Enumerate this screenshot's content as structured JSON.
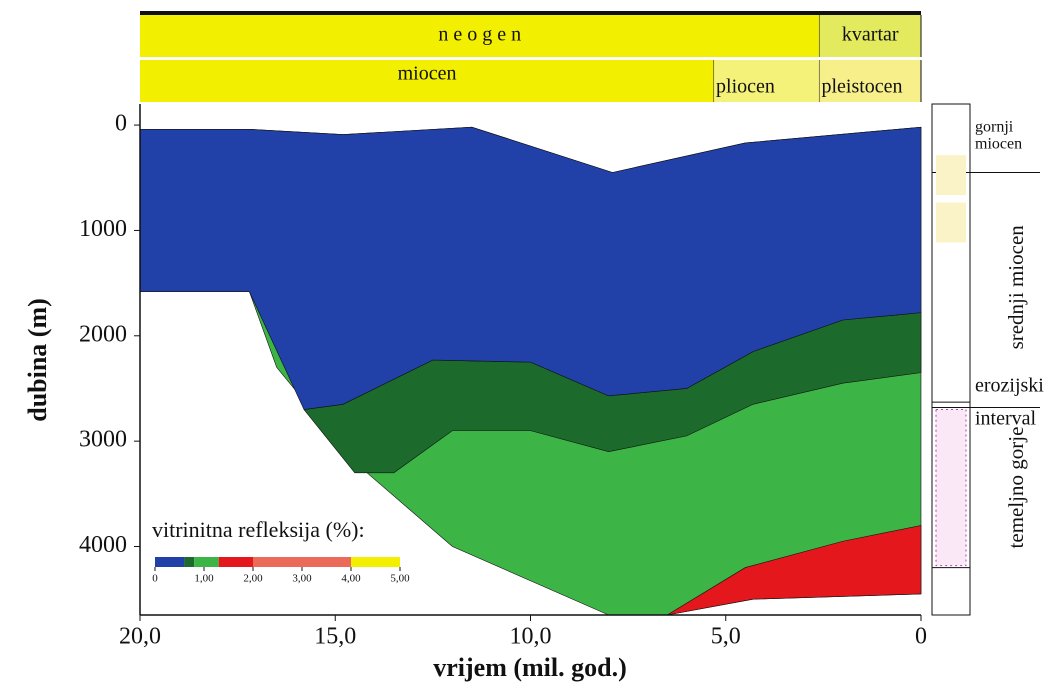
{
  "chart_data": {
    "type": "burial-history",
    "xlabel": "vrijem (mil. god.)",
    "ylabel": "dubina (m)",
    "xlim": [
      20,
      0
    ],
    "ylim": [
      -200,
      4650
    ],
    "xticks": [
      {
        "value": 20,
        "label": "20,0"
      },
      {
        "value": 15,
        "label": "15,0"
      },
      {
        "value": 10,
        "label": "10,0"
      },
      {
        "value": 5,
        "label": "5,0"
      },
      0
    ],
    "yticks": [
      0,
      1000,
      2000,
      3000,
      4000
    ],
    "periods": [
      [
        {
          "label": "n e o g e n",
          "start": 20,
          "end": 2.6,
          "color": "#f2ef00"
        },
        {
          "label": "kvartar",
          "start": 2.6,
          "end": 0,
          "color": "#e3ea5e"
        }
      ],
      [
        {
          "label": "miocen",
          "start": 20,
          "end": 5.3,
          "color": "#f2ef00"
        },
        {
          "label": "pliocen",
          "start": 5.3,
          "end": 2.6,
          "color": "#f5f27a"
        },
        {
          "label": "pleistocen",
          "start": 2.6,
          "end": 0,
          "color": "#f6ef8a"
        }
      ]
    ],
    "zones": [
      {
        "color": "#3cb446",
        "x": [
          20,
          17.2,
          14.8,
          11.5,
          7.9,
          4.5,
          0,
          0,
          4.3,
          6.5,
          8,
          12,
          14.5,
          16.5,
          17.2,
          20
        ],
        "y": [
          40,
          40,
          90,
          20,
          450,
          170,
          20,
          4450,
          4500,
          4650,
          4650,
          4000,
          3200,
          2300,
          1580,
          1580
        ]
      },
      {
        "color": "#e3171c",
        "x": [
          6.5,
          4.5,
          2,
          0,
          0,
          4.3
        ],
        "y": [
          4650,
          4200,
          3950,
          3800,
          4450,
          4500
        ]
      },
      {
        "color": "#1c6b2c",
        "x": [
          15.8,
          14.8,
          12.5,
          10,
          8,
          6,
          4.3,
          2,
          0,
          0,
          2,
          4.3,
          6,
          8,
          10,
          12,
          13.5,
          14.5
        ],
        "y": [
          2700,
          2650,
          2230,
          2250,
          2570,
          2500,
          2150,
          1850,
          1780,
          2350,
          2450,
          2650,
          2950,
          3100,
          2900,
          2900,
          3300,
          3300
        ]
      },
      {
        "color": "#2140a8",
        "x": [
          20,
          17.2,
          14.8,
          11.5,
          7.9,
          4.5,
          0,
          0,
          2,
          4.3,
          6,
          8,
          10,
          12.5,
          14.8,
          15.8,
          17.2,
          20
        ],
        "y": [
          40,
          40,
          90,
          20,
          450,
          170,
          20,
          1780,
          1850,
          2150,
          2500,
          2570,
          2250,
          2230,
          2650,
          2700,
          1580,
          1580
        ]
      }
    ],
    "legend": {
      "title": "vitrinitna refleksija (%):",
      "ticks": [
        0,
        {
          "value": 1,
          "label": "1,00"
        },
        {
          "value": 2,
          "label": "2,00"
        },
        {
          "value": 3,
          "label": "3,00"
        },
        {
          "value": 4,
          "label": "4,00"
        },
        {
          "value": 5,
          "label": "5,00"
        }
      ],
      "bands": [
        {
          "from": 0,
          "to": 0.6,
          "color": "#2140a8"
        },
        {
          "from": 0.6,
          "to": 0.8,
          "color": "#1c6b2c"
        },
        {
          "from": 0.8,
          "to": 1.3,
          "color": "#3cb446"
        },
        {
          "from": 1.3,
          "to": 2,
          "color": "#e3171c"
        },
        {
          "from": 2,
          "to": 4,
          "color": "#ec6a5a"
        },
        {
          "from": 4,
          "to": 5,
          "color": "#f2ef00"
        }
      ]
    },
    "column": [
      {
        "lines": [
          "gornji",
          "miocen"
        ],
        "top": 0,
        "bottom": 450
      },
      {
        "lines": [
          "srednji miocen"
        ],
        "top": 450,
        "bottom": 2630
      },
      {
        "lines": [
          "erozijski",
          "interval"
        ],
        "top": 2630,
        "bottom": 2680
      },
      {
        "lines": [
          "temeljno gorje"
        ],
        "top": 2680,
        "bottom": 4200
      }
    ]
  }
}
